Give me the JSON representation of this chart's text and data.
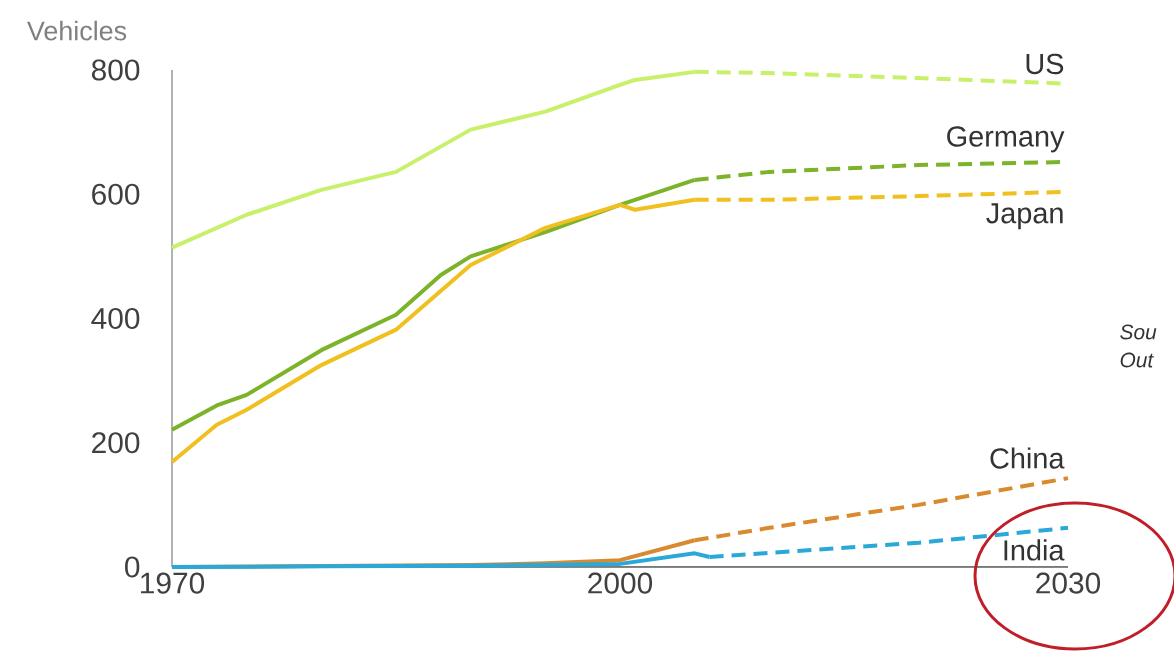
{
  "chart_data": {
    "type": "line",
    "ylabel": "Vehicles",
    "xlim": [
      1970,
      2030
    ],
    "ylim": [
      0,
      800
    ],
    "xticks": [
      1970,
      2000,
      2030
    ],
    "yticks": [
      0,
      200,
      400,
      600,
      800
    ],
    "legend": false,
    "grid": false,
    "marker": "none",
    "annotations": [
      "Sou",
      "Out"
    ],
    "series": [
      {
        "color": "#c8f06a",
        "line_style": "solid",
        "x": [
          1970,
          1975,
          1980,
          1985,
          1990,
          1995,
          2000,
          2001,
          2005
        ],
        "values": [
          514,
          567,
          607,
          636,
          704,
          733,
          776,
          784,
          797
        ]
      },
      {
        "name": "US",
        "color": "#c8f06a",
        "line_style": "dashed",
        "x": [
          2005,
          2010,
          2020,
          2030
        ],
        "values": [
          797,
          795,
          787,
          778
        ]
      },
      {
        "color": "#7db32a",
        "line_style": "solid",
        "x": [
          1970,
          1973,
          1975,
          1980,
          1985,
          1988,
          1990,
          1995,
          2000,
          2005
        ],
        "values": [
          221,
          260,
          277,
          349,
          406,
          470,
          500,
          539,
          583,
          623
        ]
      },
      {
        "name": "Germany",
        "color": "#7db32a",
        "line_style": "dashed",
        "x": [
          2005,
          2010,
          2020,
          2030
        ],
        "values": [
          623,
          636,
          647,
          652
        ]
      },
      {
        "color": "#f0c020",
        "line_style": "solid",
        "x": [
          1970,
          1973,
          1975,
          1980,
          1985,
          1990,
          1995,
          2000,
          2001,
          2005
        ],
        "values": [
          169,
          229,
          253,
          325,
          382,
          486,
          546,
          583,
          575,
          591
        ]
      },
      {
        "name": "Japan",
        "color": "#f0c020",
        "line_style": "dashed",
        "x": [
          2005,
          2010,
          2020,
          2030
        ],
        "values": [
          591,
          591,
          597,
          604
        ]
      },
      {
        "color": "#d98a2e",
        "line_style": "solid",
        "x": [
          1970,
          1980,
          1990,
          1995,
          2000,
          2005
        ],
        "values": [
          0,
          null,
          3,
          6,
          11,
          43
        ]
      },
      {
        "name": "China",
        "color": "#d98a2e",
        "line_style": "dashed",
        "x": [
          2005,
          2010,
          2020,
          2030
        ],
        "values": [
          43,
          63,
          100,
          143
        ]
      },
      {
        "color": "#2aa8d8",
        "line_style": "solid",
        "x": [
          1970,
          1980,
          1990,
          2000,
          2005,
          2006
        ],
        "values": [
          0,
          1,
          2,
          5,
          22,
          16
        ]
      },
      {
        "name": "India",
        "color": "#2aa8d8",
        "line_style": "dashed",
        "x": [
          2006,
          2020,
          2030
        ],
        "values": [
          16,
          39,
          63
        ]
      }
    ]
  }
}
